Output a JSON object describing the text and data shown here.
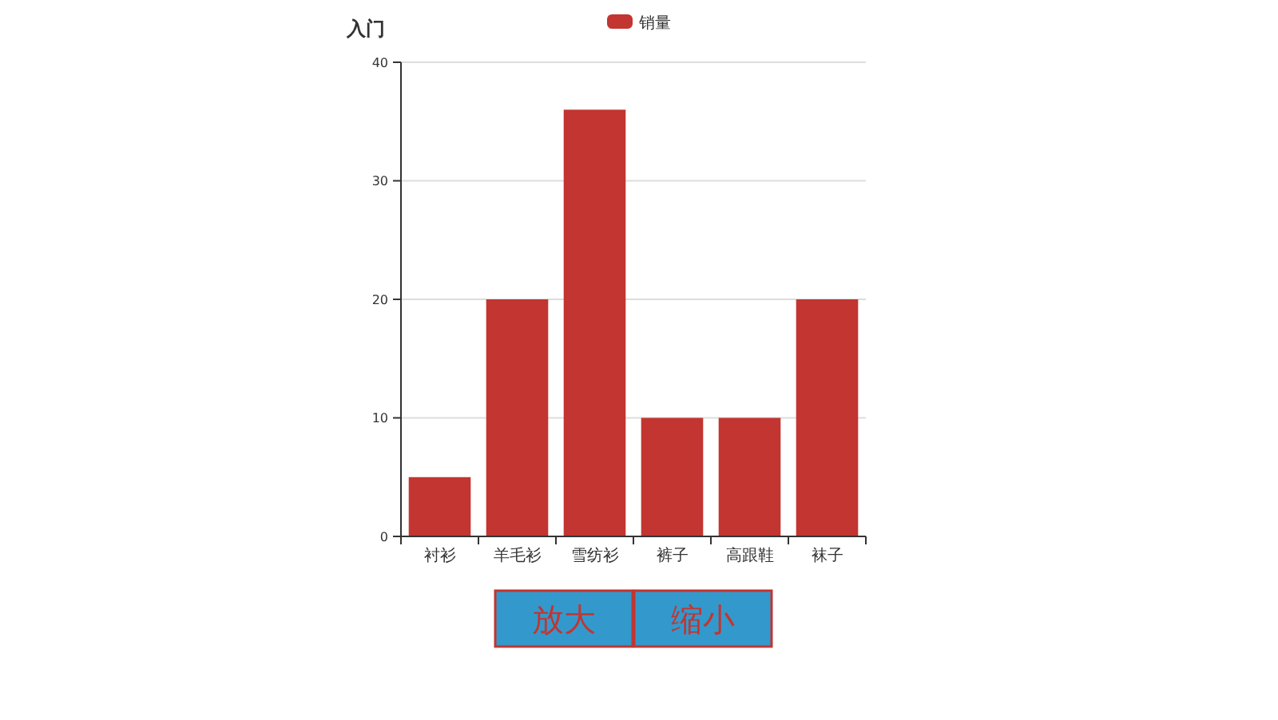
{
  "chart_data": {
    "type": "bar",
    "title": "入门",
    "categories": [
      "衬衫",
      "羊毛衫",
      "雪纺衫",
      "裤子",
      "高跟鞋",
      "袜子"
    ],
    "series": [
      {
        "name": "销量",
        "color": "#c23531",
        "values": [
          5,
          20,
          36,
          10,
          10,
          20
        ]
      }
    ],
    "ylim": [
      0,
      40
    ],
    "yticks": [
      0,
      10,
      20,
      30,
      40
    ],
    "grid": "y",
    "legend": "top",
    "annotations": [
      "放大",
      "缩小"
    ]
  }
}
